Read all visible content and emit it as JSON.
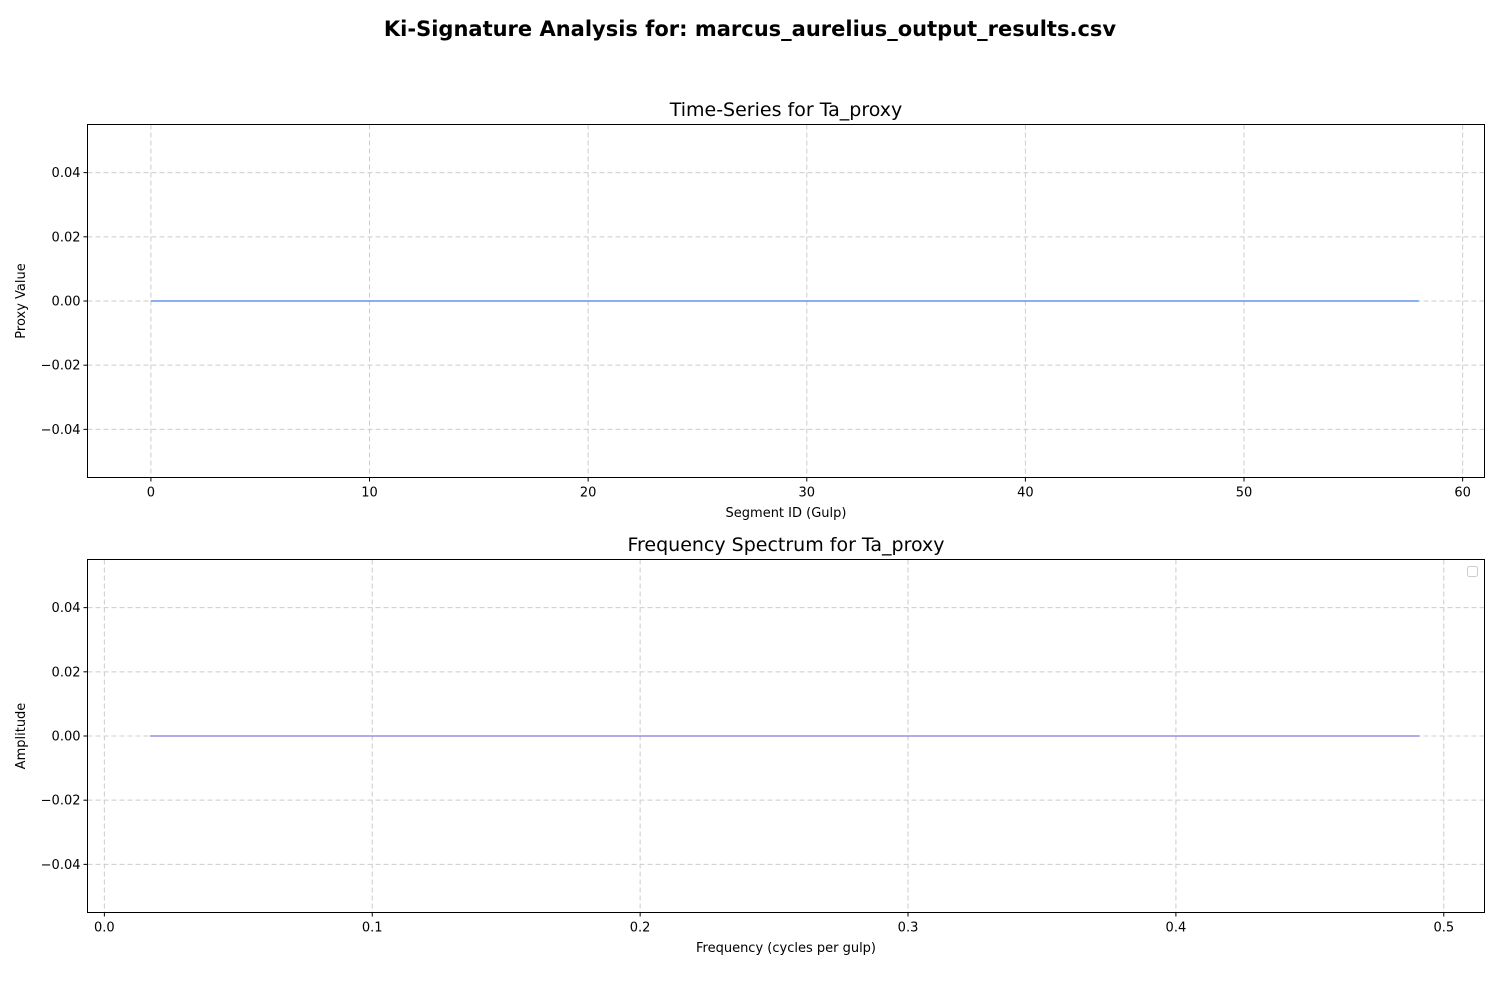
{
  "figure_title": "Ki-Signature Analysis for: marcus_aurelius_output_results.csv",
  "chart_data": [
    {
      "type": "line",
      "title": "Time-Series for Ta_proxy",
      "xlabel": "Segment ID (Gulp)",
      "ylabel": "Proxy Value",
      "xlim": [
        -2.9,
        61
      ],
      "ylim": [
        -0.055,
        0.055
      ],
      "xticks": [
        0,
        10,
        20,
        30,
        40,
        50,
        60
      ],
      "xtick_labels": [
        "0",
        "10",
        "20",
        "30",
        "40",
        "50",
        "60"
      ],
      "yticks": [
        -0.04,
        -0.02,
        0.0,
        0.02,
        0.04
      ],
      "ytick_labels": [
        "−0.04",
        "−0.02",
        "0.00",
        "0.02",
        "0.04"
      ],
      "grid": true,
      "legend": false,
      "series": [
        {
          "color": "#6495ED",
          "x": [
            0,
            58
          ],
          "y": [
            0.0,
            0.0
          ]
        }
      ]
    },
    {
      "type": "line",
      "title": "Frequency Spectrum for Ta_proxy",
      "xlabel": "Frequency (cycles per gulp)",
      "ylabel": "Amplitude",
      "xlim": [
        -0.0063,
        0.5152
      ],
      "ylim": [
        -0.055,
        0.055
      ],
      "xticks": [
        0.0,
        0.1,
        0.2,
        0.3,
        0.4,
        0.5
      ],
      "xtick_labels": [
        "0.0",
        "0.1",
        "0.2",
        "0.3",
        "0.4",
        "0.5"
      ],
      "yticks": [
        -0.04,
        -0.02,
        0.0,
        0.02,
        0.04
      ],
      "ytick_labels": [
        "−0.04",
        "−0.02",
        "0.00",
        "0.02",
        "0.04"
      ],
      "grid": true,
      "legend": "upper-right (empty)",
      "series": [
        {
          "color": "#6A5ACD",
          "x": [
            0.017,
            0.491
          ],
          "y": [
            0.0,
            0.0
          ]
        }
      ]
    }
  ]
}
